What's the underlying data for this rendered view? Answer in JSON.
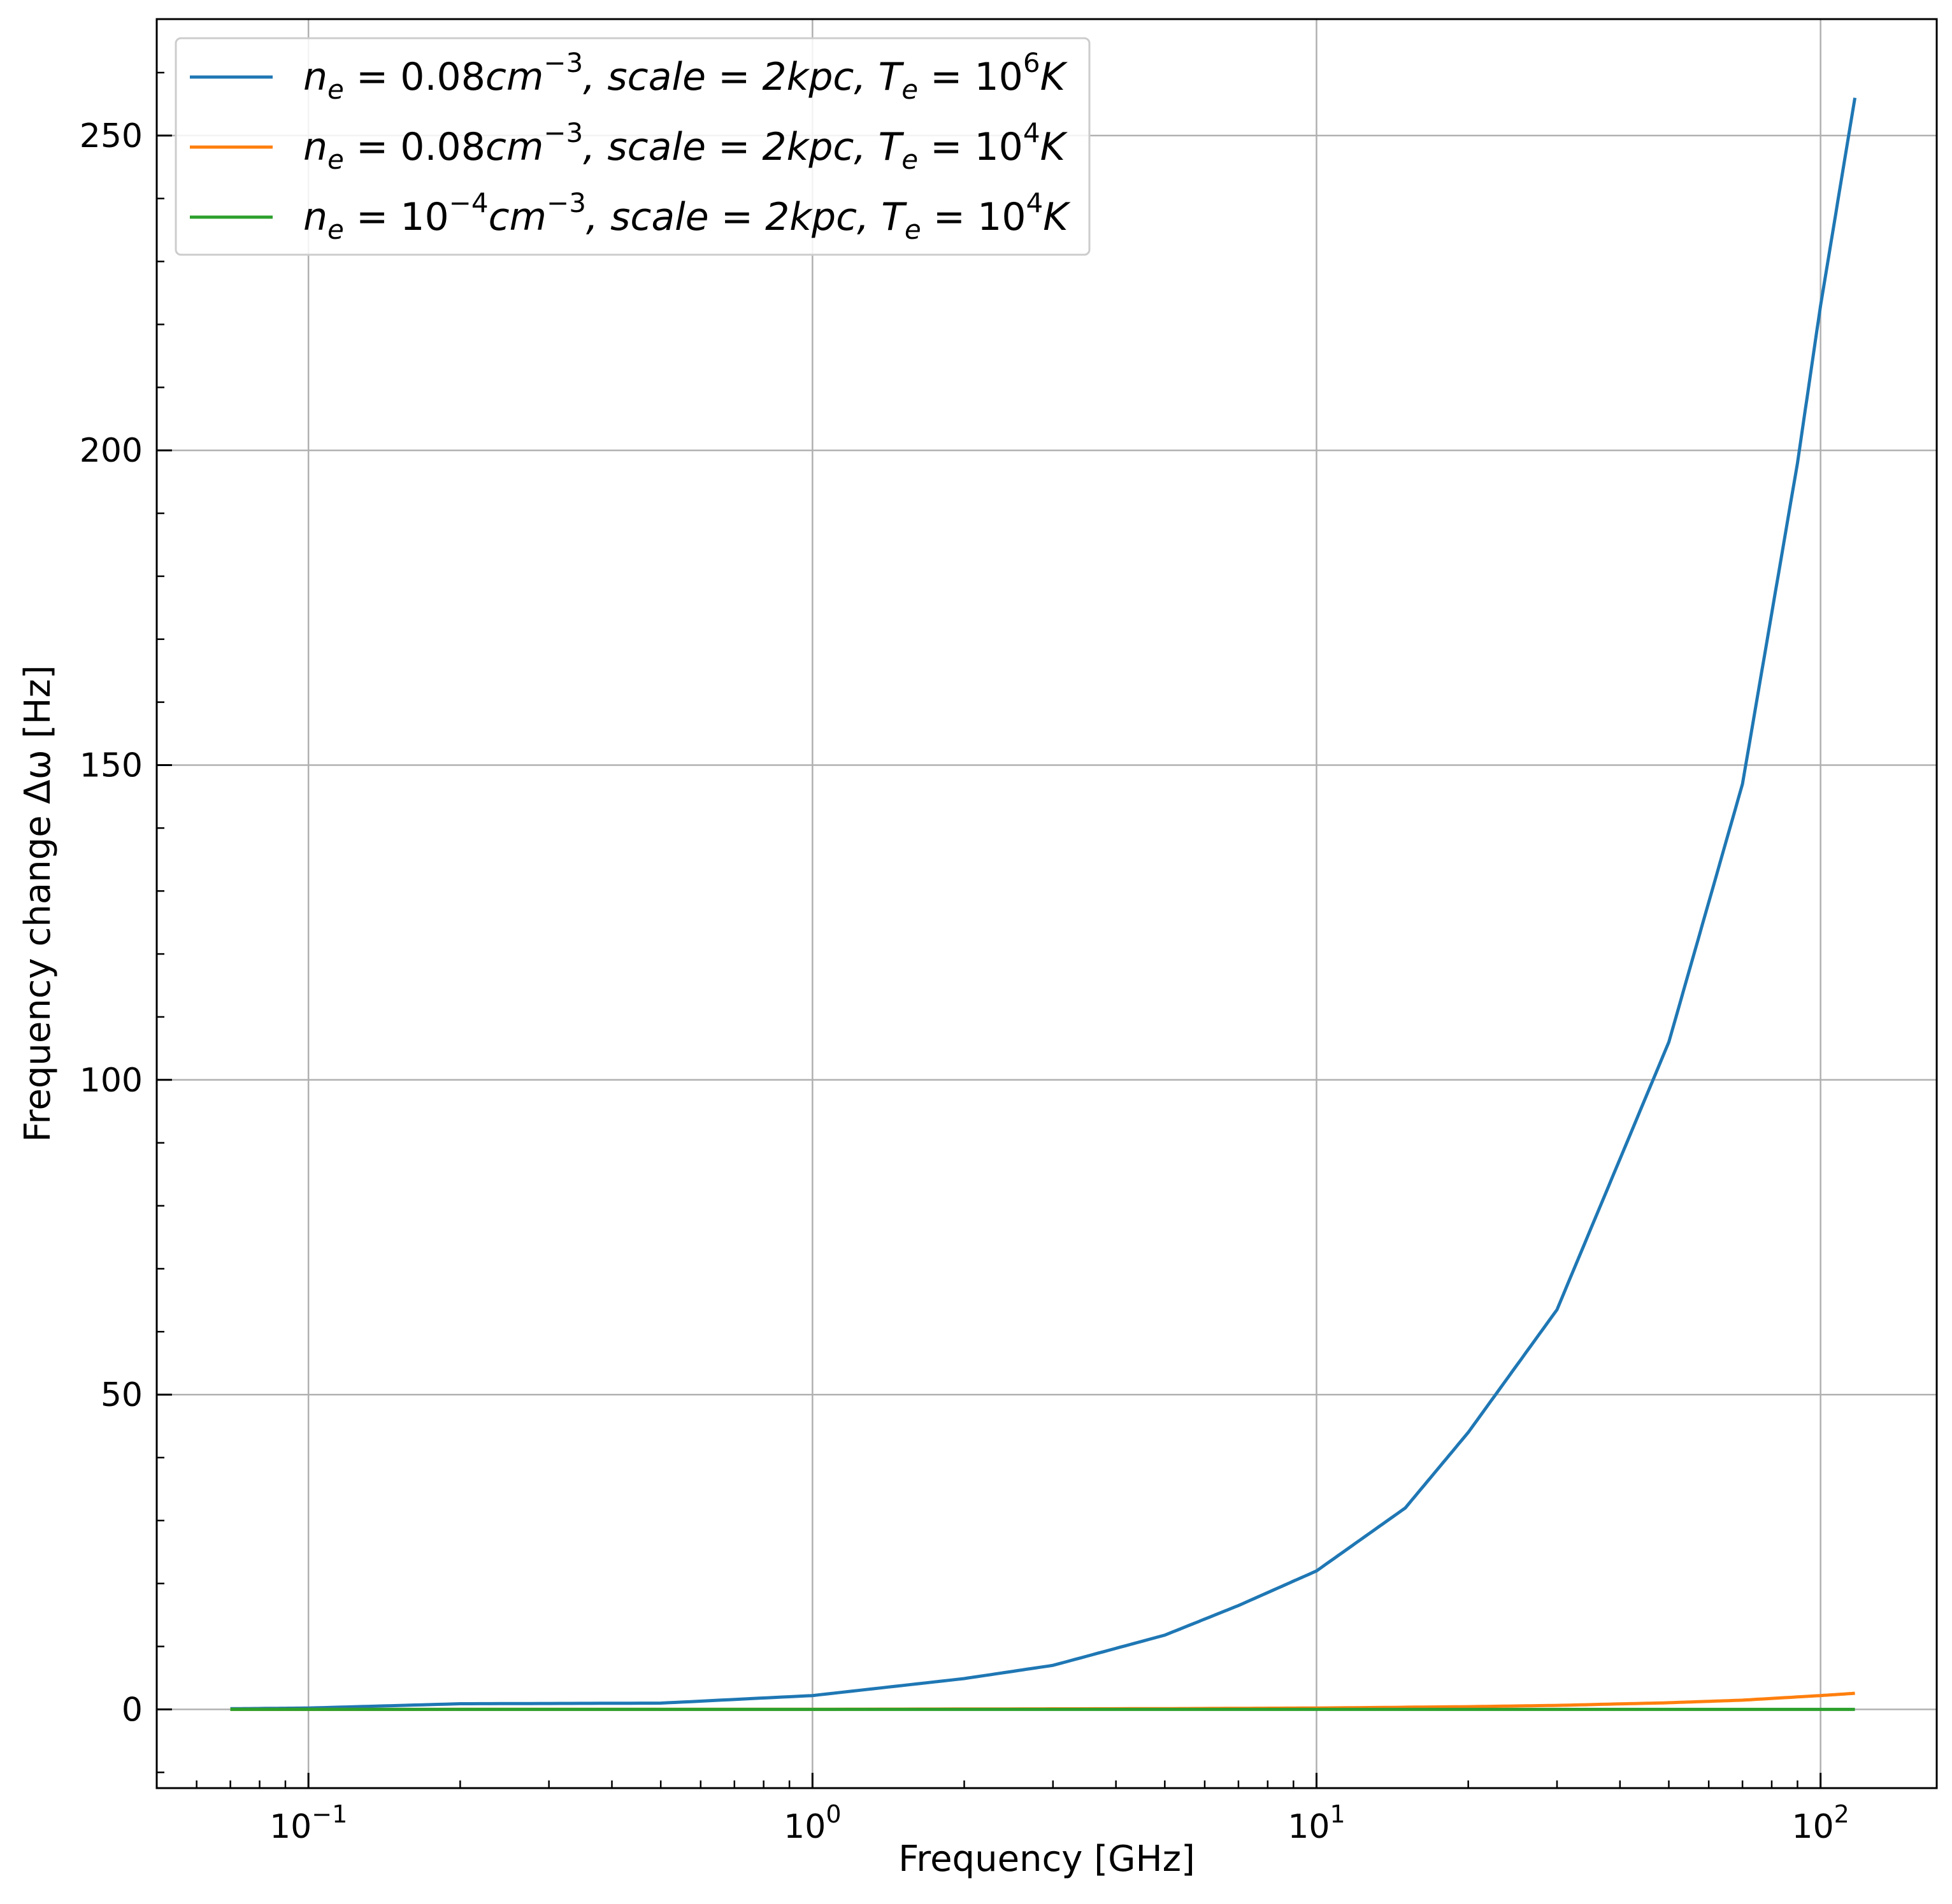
{
  "chart_data": {
    "type": "line",
    "xscale": "log",
    "xlim": [
      0.05,
      170
    ],
    "ylim": [
      -12.5,
      268.5
    ],
    "xlabel": "Frequency  [GHz]",
    "ylabel": "Frequency change Δω [Hz]",
    "grid": true,
    "legend_position": "top-left",
    "x_ticks": [
      {
        "value": 0.1,
        "base": "10",
        "exp": "−1"
      },
      {
        "value": 1,
        "base": "10",
        "exp": "0"
      },
      {
        "value": 10,
        "base": "10",
        "exp": "1"
      },
      {
        "value": 100,
        "base": "10",
        "exp": "2"
      }
    ],
    "y_ticks": [
      0,
      50,
      100,
      150,
      200,
      250
    ],
    "series": [
      {
        "name": "n_e = 0.08cm^-3, scale = 2kpc, T_e = 10^6K",
        "color": "#1f77b4",
        "x": [
          0.07,
          0.1,
          0.2,
          0.5,
          1,
          2,
          3,
          5,
          7,
          10,
          15,
          20,
          30,
          50,
          70,
          90,
          100,
          117
        ],
        "y": [
          0.11,
          0.22,
          0.9,
          1.0,
          2.2,
          4.9,
          7.0,
          11.8,
          16.5,
          22.0,
          32.0,
          44.0,
          63.5,
          106.0,
          147.0,
          198.0,
          223.0,
          256.0
        ]
      },
      {
        "name": "n_e = 0.08cm^-3, scale = 2kpc, T_e = 10^4K",
        "color": "#ff7f0e",
        "x": [
          0.07,
          1,
          5,
          10,
          20,
          30,
          50,
          70,
          100,
          117
        ],
        "y": [
          0.0,
          0.02,
          0.12,
          0.22,
          0.44,
          0.64,
          1.06,
          1.47,
          2.2,
          2.56
        ]
      },
      {
        "name": "n_e = 10^-4cm^-3, scale = 2kpc, T_e = 10^4K",
        "color": "#2ca02c",
        "x": [
          0.07,
          117
        ],
        "y": [
          0.0,
          0.003
        ]
      }
    ]
  },
  "legend": [
    {
      "sym": "n",
      "sub": "e",
      "mid1": " = 0.08",
      "cm": "cm",
      "sup1": "−3",
      "mid2": ", scale = 2kpc, ",
      "T": "T",
      "Tsub": "e",
      "eq": " = 10",
      "sup2": "6",
      "K": "K"
    },
    {
      "sym": "n",
      "sub": "e",
      "mid1": " = 0.08",
      "cm": "cm",
      "sup1": "−3",
      "mid2": ", scale = 2kpc, ",
      "T": "T",
      "Tsub": "e",
      "eq": " = 10",
      "sup2": "4",
      "K": "K"
    },
    {
      "sym": "n",
      "sub": "e",
      "mid1": " = 10",
      "cm": "cm",
      "sup1": "−3",
      "pre_sup": "−4",
      "mid2": ", scale = 2kpc, ",
      "T": "T",
      "Tsub": "e",
      "eq": " = 10",
      "sup2": "4",
      "K": "K"
    }
  ]
}
